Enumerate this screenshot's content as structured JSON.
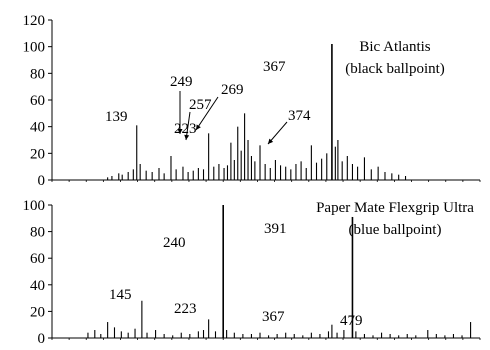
{
  "chart_data": [
    {
      "type": "bar",
      "title": "Bic Atlantis",
      "subtitle": "(black ballpoint)",
      "xlabel": "",
      "ylabel": "",
      "ylim": [
        0,
        120
      ],
      "yticks": [
        "0",
        "20",
        "40",
        "60",
        "80",
        "100",
        "120"
      ],
      "grid": false,
      "xlim": [
        40,
        540
      ],
      "x": [
        105,
        110,
        118,
        122,
        129,
        135,
        139,
        143,
        150,
        157,
        165,
        171,
        179,
        185,
        193,
        199,
        205,
        211,
        217,
        223,
        229,
        235,
        241,
        245,
        249,
        253,
        257,
        261,
        265,
        269,
        273,
        277,
        283,
        289,
        295,
        301,
        307,
        313,
        319,
        325,
        331,
        337,
        343,
        349,
        355,
        361,
        367,
        371,
        374,
        379,
        385,
        391,
        397,
        405,
        413,
        421,
        429,
        437,
        445,
        453
      ],
      "values": [
        2,
        3,
        5,
        4,
        6,
        8,
        41,
        12,
        7,
        6,
        9,
        5,
        18,
        8,
        10,
        6,
        7,
        9,
        8,
        35,
        10,
        12,
        9,
        11,
        28,
        15,
        40,
        22,
        50,
        30,
        18,
        14,
        26,
        12,
        9,
        15,
        11,
        10,
        8,
        12,
        14,
        9,
        26,
        13,
        16,
        20,
        102,
        25,
        30,
        14,
        18,
        12,
        10,
        17,
        8,
        10,
        6,
        5,
        4,
        3
      ],
      "annotations": [
        {
          "text": "139",
          "x": 139,
          "y": 41
        },
        {
          "text": "223",
          "x": 223,
          "y": 35
        },
        {
          "text": "249",
          "x": 249,
          "y": 28
        },
        {
          "text": "257",
          "x": 257,
          "y": 40
        },
        {
          "text": "269",
          "x": 269,
          "y": 50
        },
        {
          "text": "367",
          "x": 367,
          "y": 102
        },
        {
          "text": "374",
          "x": 374,
          "y": 30
        }
      ]
    },
    {
      "type": "bar",
      "title": "Paper Mate Flexgrip Ultra",
      "subtitle": "(blue ballpoint)",
      "xlabel": "",
      "ylabel": "",
      "ylim": [
        0,
        100
      ],
      "yticks": [
        "0",
        "20",
        "40",
        "60",
        "80",
        "100"
      ],
      "grid": false,
      "xlim": [
        40,
        540
      ],
      "x": [
        82,
        90,
        97,
        105,
        113,
        121,
        129,
        137,
        145,
        151,
        161,
        171,
        181,
        191,
        201,
        211,
        217,
        223,
        231,
        240,
        244,
        253,
        263,
        273,
        283,
        293,
        303,
        313,
        323,
        333,
        343,
        353,
        363,
        367,
        373,
        381,
        391,
        395,
        405,
        415,
        425,
        435,
        445,
        455,
        465,
        479,
        489,
        499,
        509,
        519,
        529
      ],
      "values": [
        4,
        6,
        3,
        12,
        8,
        5,
        4,
        7,
        28,
        4,
        6,
        3,
        2,
        4,
        3,
        5,
        6,
        14,
        5,
        100,
        6,
        4,
        3,
        3,
        4,
        2,
        3,
        4,
        3,
        2,
        4,
        3,
        5,
        10,
        4,
        6,
        91,
        5,
        3,
        2,
        4,
        3,
        2,
        3,
        2,
        6,
        3,
        2,
        3,
        2,
        12
      ],
      "annotations": [
        {
          "text": "145",
          "x": 145,
          "y": 28
        },
        {
          "text": "223",
          "x": 223,
          "y": 14
        },
        {
          "text": "240",
          "x": 240,
          "y": 100
        },
        {
          "text": "367",
          "x": 367,
          "y": 10
        },
        {
          "text": "391",
          "x": 391,
          "y": 91
        },
        {
          "text": "479",
          "x": 479,
          "y": 6
        }
      ]
    }
  ]
}
